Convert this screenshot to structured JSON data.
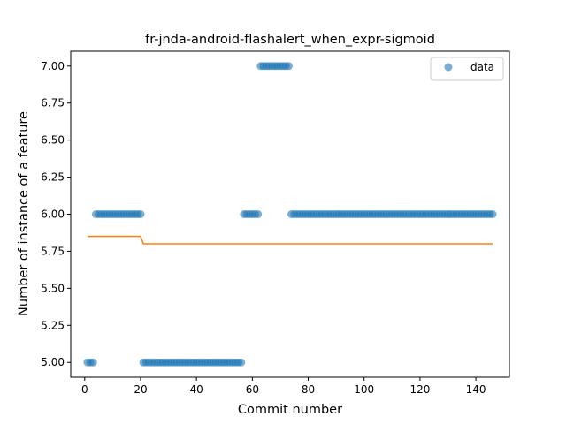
{
  "chart_data": {
    "type": "scatter",
    "title": "fr-jnda-android-flashalert_when_expr-sigmoid",
    "xlabel": "Commit number",
    "ylabel": "Number of instance of a feature",
    "xlim": [
      -5,
      152
    ],
    "ylim": [
      4.9,
      7.1
    ],
    "xticks": [
      0,
      20,
      40,
      60,
      80,
      100,
      120,
      140
    ],
    "yticks": [
      5.0,
      5.25,
      5.5,
      5.75,
      6.0,
      6.25,
      6.5,
      6.75,
      7.0
    ],
    "ytick_labels": [
      "5.00",
      "5.25",
      "5.50",
      "5.75",
      "6.00",
      "6.25",
      "6.50",
      "6.75",
      "7.00"
    ],
    "legend": {
      "position": "top-right",
      "entries": [
        "data"
      ]
    },
    "grid": false,
    "series": [
      {
        "name": "data",
        "kind": "scatter",
        "color": "#1f77b4",
        "segments": [
          {
            "x_start": 1,
            "x_end": 3,
            "y": 5.0
          },
          {
            "x_start": 4,
            "x_end": 20,
            "y": 6.0
          },
          {
            "x_start": 21,
            "x_end": 56,
            "y": 5.0
          },
          {
            "x_start": 57,
            "x_end": 62,
            "y": 6.0
          },
          {
            "x_start": 63,
            "x_end": 73,
            "y": 7.0
          },
          {
            "x_start": 74,
            "x_end": 146,
            "y": 6.0
          }
        ]
      },
      {
        "kind": "line",
        "color": "#ff7f0e",
        "x": [
          1,
          20,
          21,
          146
        ],
        "y": [
          5.85,
          5.85,
          5.8,
          5.8
        ]
      }
    ]
  }
}
